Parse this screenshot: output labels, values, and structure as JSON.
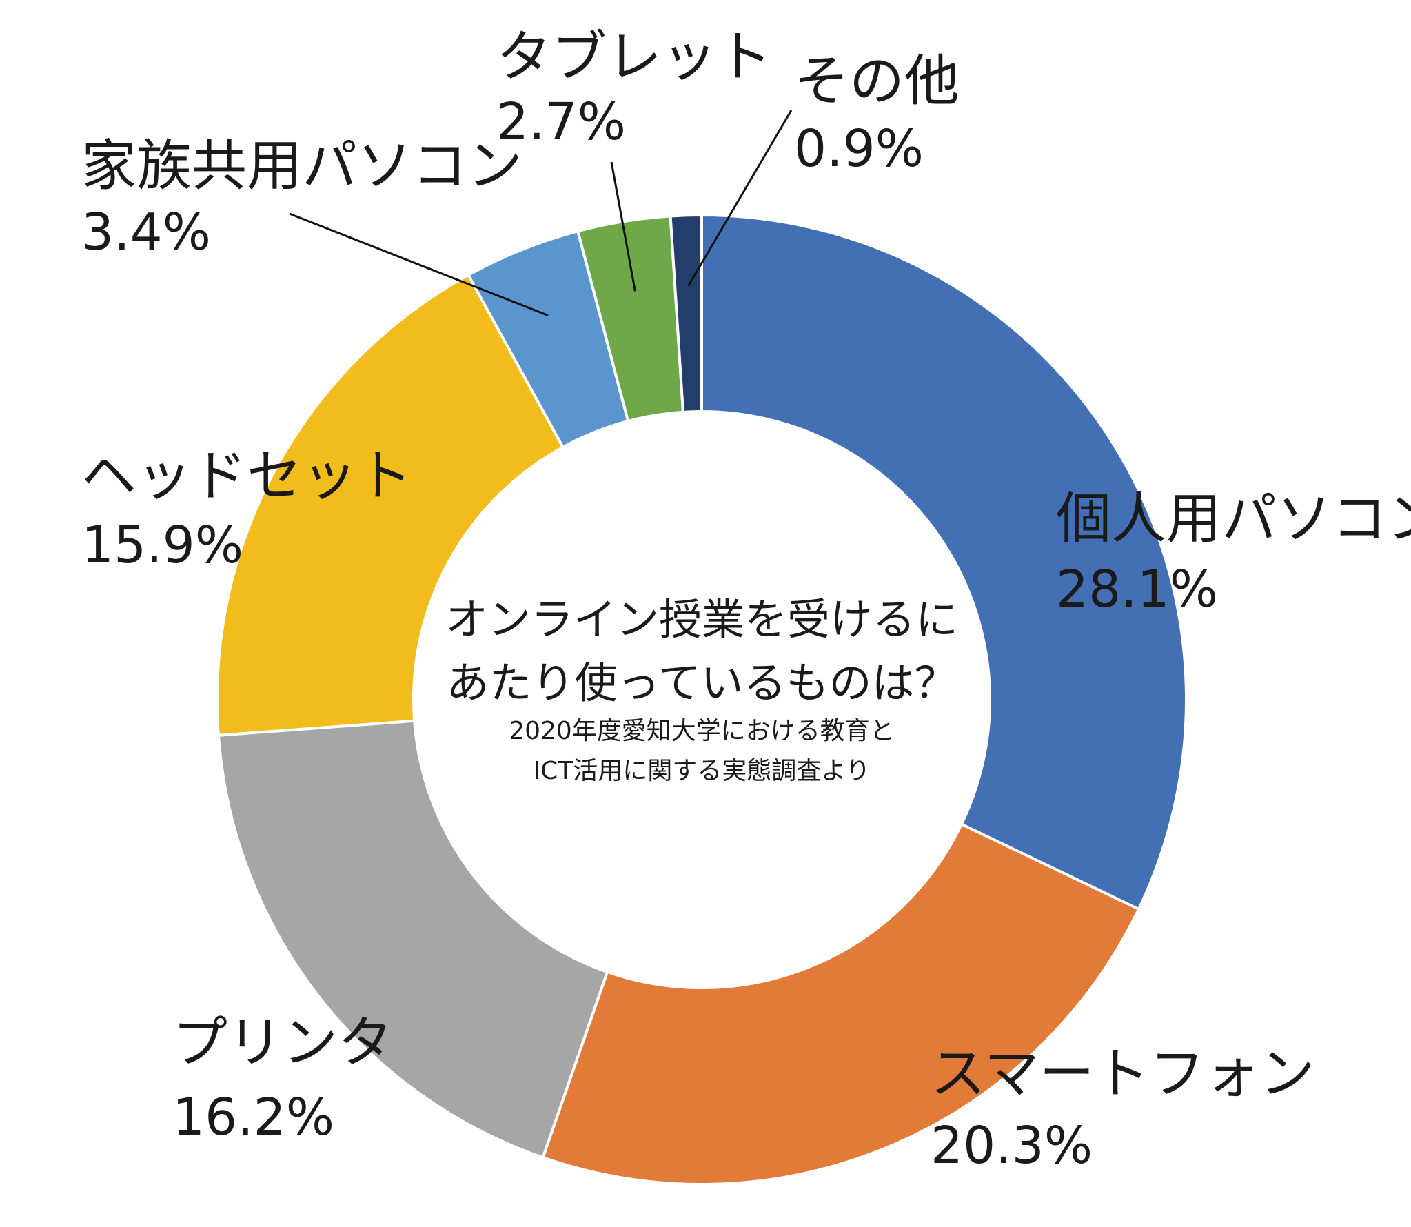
{
  "chart_data": {
    "type": "pie",
    "variant": "donut",
    "title": "オンライン授業を受けるにあたり使っているものは？",
    "title_lines": [
      "オンライン授業を受けるに",
      "あたり使っているものは？"
    ],
    "subtitle_lines": [
      "2020年度愛知大学における教育と",
      "ICT活用に関する実態調査より"
    ],
    "legend": "none",
    "categories": [
      "個人用パソコン",
      "スマートフォン",
      "プリンタ",
      "ヘッドセット",
      "家族共用パソコン",
      "タブレット",
      "その他"
    ],
    "values": [
      28.1,
      20.3,
      16.2,
      15.9,
      3.4,
      2.7,
      0.9
    ],
    "value_labels": [
      "28.1%",
      "20.3%",
      "16.2%",
      "15.9%",
      "3.4%",
      "2.7%",
      "0.9%"
    ],
    "unit": "%",
    "start_angle": "12 o'clock",
    "direction": "clockwise",
    "colors": [
      "#4370B5",
      "#E27A38",
      "#A6A6A6",
      "#F2BC1C",
      "#5A95CD",
      "#6FA849",
      "#233E6A"
    ],
    "border_color": "#FFFFFF",
    "leader_color": "#111111"
  }
}
